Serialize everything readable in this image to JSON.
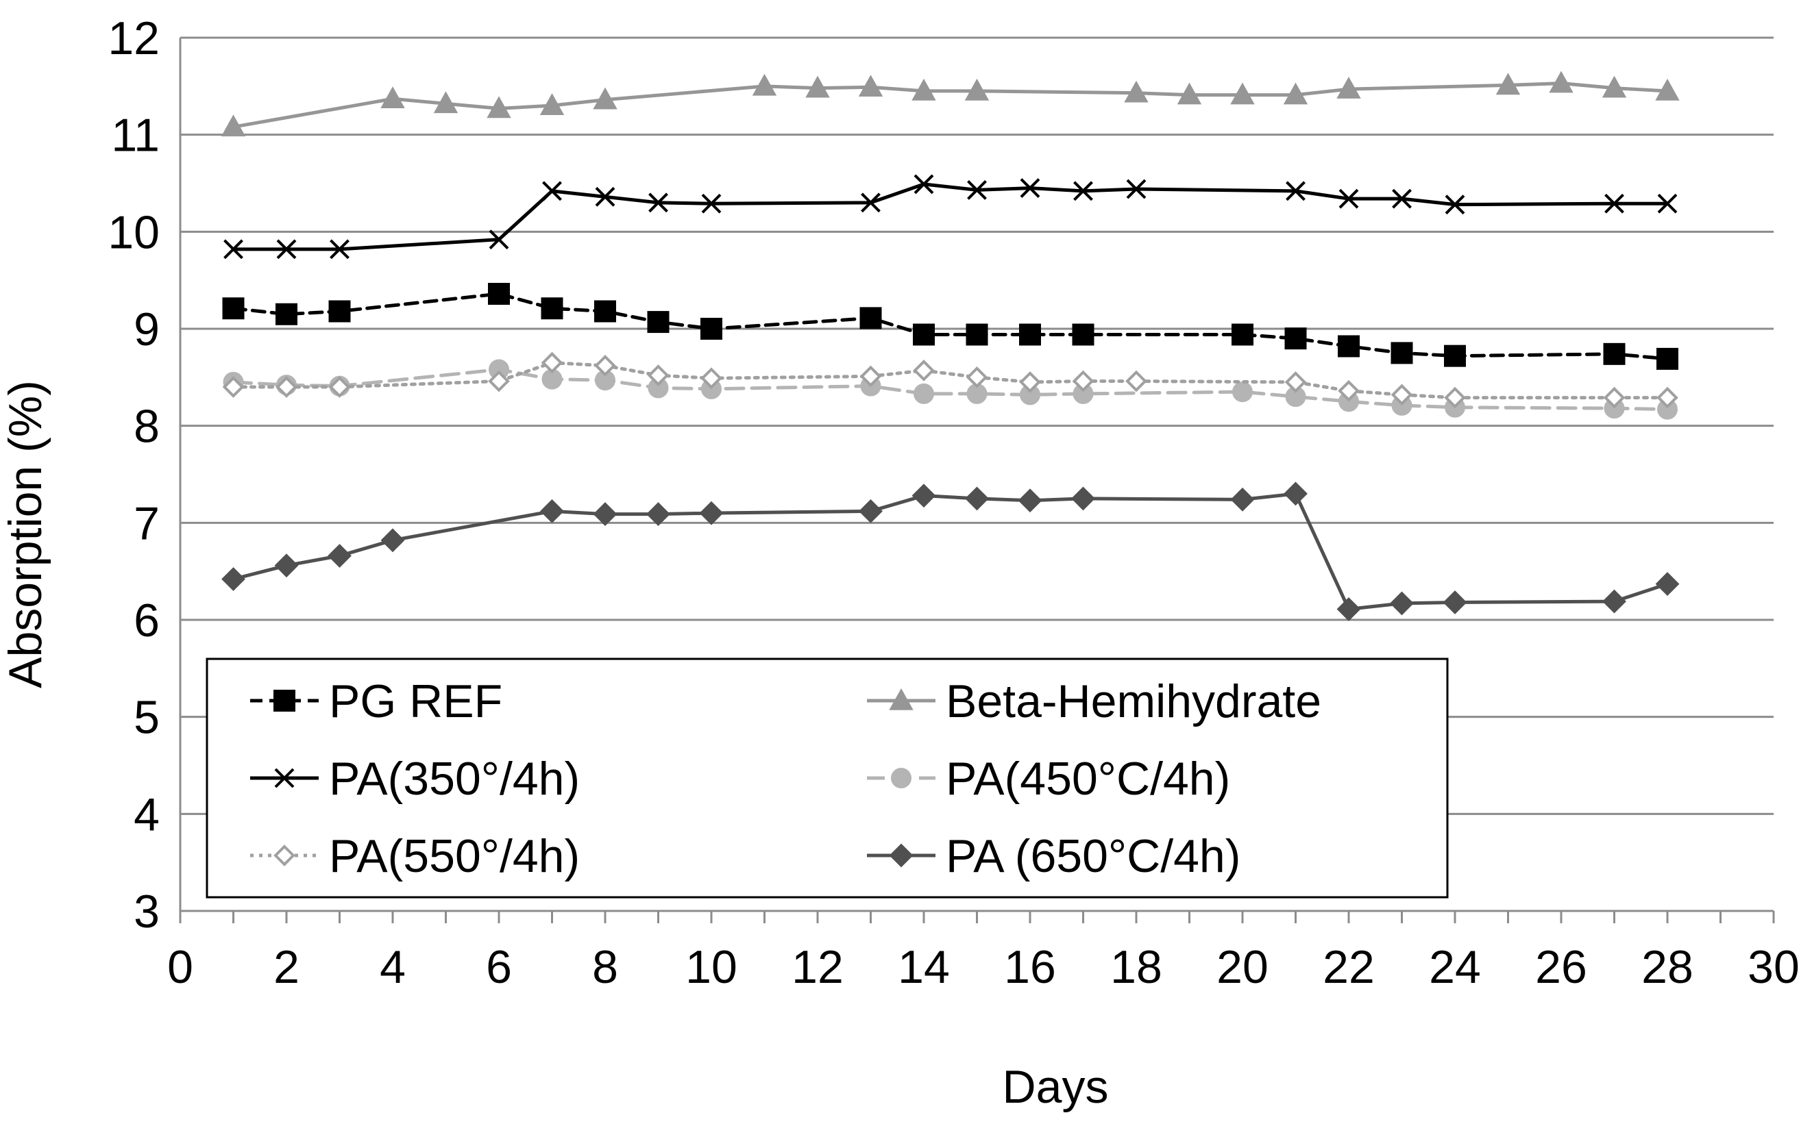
{
  "chart_data": {
    "type": "line",
    "title": "",
    "xlabel": "Days",
    "ylabel": "Absorption (%)",
    "xlim": [
      0,
      30
    ],
    "ylim": [
      3,
      12
    ],
    "xticks": [
      0,
      2,
      4,
      6,
      8,
      10,
      12,
      14,
      16,
      18,
      20,
      22,
      24,
      26,
      28,
      30
    ],
    "yticks": [
      3,
      4,
      5,
      6,
      7,
      8,
      9,
      10,
      11,
      12
    ],
    "grid": "horizontal",
    "legend_position": "lower-left",
    "series": [
      {
        "name": "PG REF",
        "color": "#000000",
        "dash": "dashed",
        "marker": "square",
        "marker_fill": "#000000",
        "marker_stroke": "#000000",
        "x": [
          1,
          2,
          3,
          6,
          7,
          8,
          9,
          10,
          13,
          14,
          15,
          16,
          17,
          20,
          21,
          22,
          23,
          24,
          27,
          28
        ],
        "y": [
          9.21,
          9.15,
          9.18,
          9.36,
          9.21,
          9.18,
          9.07,
          9.0,
          9.11,
          8.94,
          8.94,
          8.94,
          8.94,
          8.94,
          8.9,
          8.82,
          8.75,
          8.72,
          8.74,
          8.69
        ]
      },
      {
        "name": "Beta-Hemihydrate",
        "color": "#969696",
        "dash": "solid",
        "marker": "triangle",
        "marker_fill": "#969696",
        "marker_stroke": "#969696",
        "x": [
          1,
          4,
          5,
          6,
          7,
          8,
          11,
          12,
          13,
          14,
          15,
          18,
          19,
          20,
          21,
          22,
          25,
          26,
          27,
          28
        ],
        "y": [
          11.08,
          11.37,
          11.32,
          11.27,
          11.3,
          11.36,
          11.5,
          11.48,
          11.49,
          11.45,
          11.45,
          11.43,
          11.41,
          11.41,
          11.41,
          11.47,
          11.51,
          11.53,
          11.48,
          11.45
        ]
      },
      {
        "name": "PA(350°/4h)",
        "color": "#000000",
        "dash": "solid",
        "marker": "x",
        "marker_fill": "none",
        "marker_stroke": "#000000",
        "x": [
          1,
          2,
          3,
          6,
          7,
          8,
          9,
          10,
          13,
          14,
          15,
          16,
          17,
          18,
          21,
          22,
          23,
          24,
          27,
          28
        ],
        "y": [
          9.82,
          9.82,
          9.82,
          9.92,
          10.42,
          10.36,
          10.3,
          10.29,
          10.3,
          10.49,
          10.43,
          10.45,
          10.42,
          10.44,
          10.42,
          10.34,
          10.34,
          10.28,
          10.29,
          10.29
        ]
      },
      {
        "name": "PA(450°C/4h)",
        "color": "#b4b4b4",
        "dash": "longdash",
        "marker": "circle",
        "marker_fill": "#b4b4b4",
        "marker_stroke": "#b4b4b4",
        "x": [
          1,
          2,
          3,
          6,
          7,
          8,
          9,
          10,
          13,
          14,
          15,
          16,
          17,
          20,
          21,
          22,
          23,
          24,
          27,
          28
        ],
        "y": [
          8.45,
          8.42,
          8.41,
          8.58,
          8.48,
          8.47,
          8.39,
          8.38,
          8.41,
          8.33,
          8.33,
          8.32,
          8.33,
          8.35,
          8.3,
          8.25,
          8.21,
          8.19,
          8.18,
          8.17
        ]
      },
      {
        "name": "PA(550°/4h)",
        "color": "#a0a0a0",
        "dash": "dotted",
        "marker": "diamond-open",
        "marker_fill": "#ffffff",
        "marker_stroke": "#a0a0a0",
        "x": [
          1,
          2,
          3,
          6,
          7,
          8,
          9,
          10,
          13,
          14,
          15,
          16,
          17,
          18,
          21,
          22,
          23,
          24,
          27,
          28
        ],
        "y": [
          8.4,
          8.4,
          8.4,
          8.46,
          8.65,
          8.62,
          8.52,
          8.49,
          8.51,
          8.57,
          8.5,
          8.45,
          8.46,
          8.46,
          8.45,
          8.36,
          8.32,
          8.29,
          8.29,
          8.29
        ]
      },
      {
        "name": "PA (650°C/4h)",
        "color": "#505050",
        "dash": "solid",
        "marker": "diamond",
        "marker_fill": "#505050",
        "marker_stroke": "#505050",
        "x": [
          1,
          2,
          3,
          4,
          7,
          8,
          9,
          10,
          13,
          14,
          15,
          16,
          17,
          20,
          21,
          22,
          23,
          24,
          27,
          28
        ],
        "y": [
          6.42,
          6.56,
          6.66,
          6.82,
          7.12,
          7.09,
          7.09,
          7.1,
          7.12,
          7.28,
          7.25,
          7.23,
          7.25,
          7.24,
          7.3,
          6.11,
          6.17,
          6.18,
          6.19,
          6.37
        ]
      }
    ]
  }
}
